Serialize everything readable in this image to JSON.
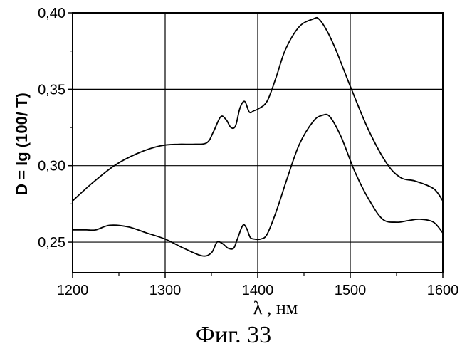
{
  "chart_data": {
    "type": "line",
    "title": "",
    "xlabel": "λ , нм",
    "ylabel": "D = lg (100/ T)",
    "xlim": [
      1200,
      1600
    ],
    "ylim": [
      0.23,
      0.4
    ],
    "x_ticks": [
      1200,
      1300,
      1400,
      1500,
      1600
    ],
    "x_tick_labels": [
      "1200",
      "1300",
      "1400",
      "1500",
      "1600"
    ],
    "y_ticks": [
      0.25,
      0.3,
      0.35,
      0.4
    ],
    "y_tick_labels": [
      "0,25",
      "0,30",
      "0,35",
      "0,40"
    ],
    "grid": true,
    "series": [
      {
        "x": [
          1200,
          1220,
          1245,
          1270,
          1295,
          1315,
          1330,
          1345,
          1352,
          1360,
          1366,
          1371,
          1376,
          1381,
          1386,
          1391,
          1396,
          1400,
          1410,
          1420,
          1430,
          1445,
          1460,
          1466,
          1475,
          1485,
          1500,
          1520,
          1540,
          1555,
          1570,
          1590,
          1600
        ],
        "y": [
          0.277,
          0.288,
          0.3,
          0.308,
          0.313,
          0.314,
          0.314,
          0.315,
          0.322,
          0.332,
          0.33,
          0.325,
          0.326,
          0.338,
          0.342,
          0.335,
          0.336,
          0.337,
          0.342,
          0.358,
          0.376,
          0.391,
          0.396,
          0.396,
          0.388,
          0.375,
          0.352,
          0.323,
          0.301,
          0.292,
          0.29,
          0.285,
          0.277
        ]
      },
      {
        "x": [
          1200,
          1215,
          1225,
          1240,
          1260,
          1280,
          1300,
          1320,
          1340,
          1350,
          1356,
          1362,
          1368,
          1374,
          1378,
          1384,
          1388,
          1392,
          1397,
          1403,
          1410,
          1420,
          1432,
          1445,
          1460,
          1470,
          1478,
          1490,
          1505,
          1520,
          1535,
          1550,
          1562,
          1575,
          1590,
          1600
        ],
        "y": [
          0.258,
          0.258,
          0.258,
          0.261,
          0.26,
          0.256,
          0.252,
          0.246,
          0.241,
          0.243,
          0.25,
          0.249,
          0.246,
          0.246,
          0.252,
          0.261,
          0.259,
          0.253,
          0.252,
          0.252,
          0.255,
          0.27,
          0.292,
          0.314,
          0.329,
          0.333,
          0.332,
          0.319,
          0.296,
          0.278,
          0.265,
          0.263,
          0.264,
          0.265,
          0.263,
          0.256
        ]
      }
    ]
  },
  "caption": "Фиг. 33"
}
